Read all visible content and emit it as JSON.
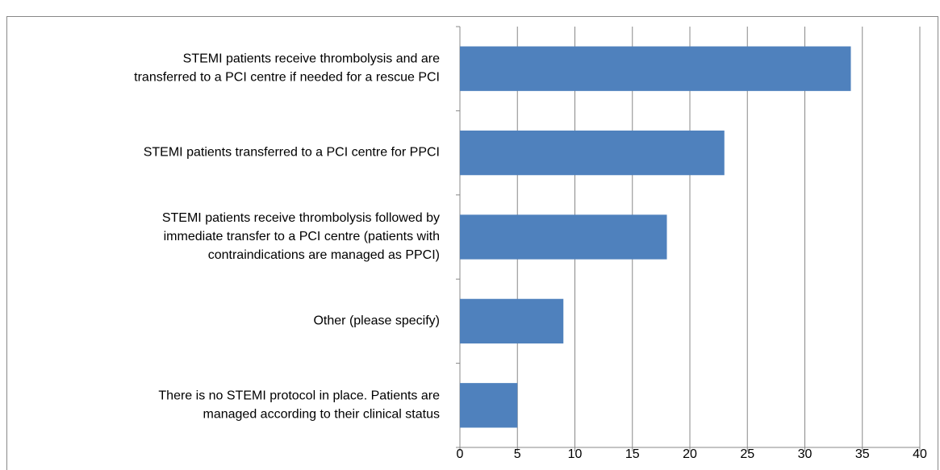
{
  "chart_data": {
    "type": "bar",
    "orientation": "horizontal",
    "categories": [
      [
        "STEMI patients receive thrombolysis and are",
        "transferred to a PCI centre if needed for a rescue PCI"
      ],
      [
        "STEMI patients transferred to a PCI centre for PPCI"
      ],
      [
        "STEMI patients receive thrombolysis followed by",
        "immediate transfer to a PCI centre (patients with",
        "contraindications are managed as PPCI)"
      ],
      [
        "Other (please specify)"
      ],
      [
        "There is no STEMI protocol in place. Patients are",
        "managed according to their clinical status"
      ]
    ],
    "values": [
      34,
      23,
      18,
      9,
      5
    ],
    "color": "#4f81bd",
    "xlim": [
      0,
      40
    ],
    "xticks": [
      0,
      5,
      10,
      15,
      20,
      25,
      30,
      35,
      40
    ],
    "grid": true
  }
}
